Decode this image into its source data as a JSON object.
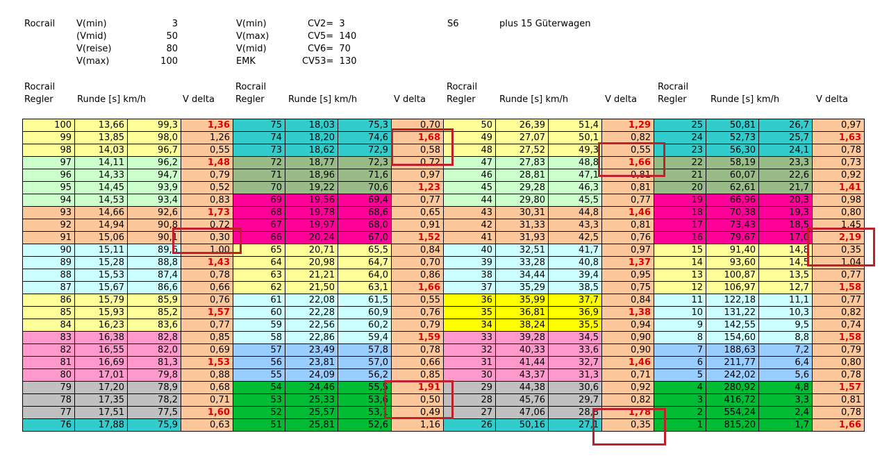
{
  "header": {
    "left_label": "Rocrail",
    "speeds": [
      {
        "label": "V(min)",
        "value": "3"
      },
      {
        "label": "(Vmid)",
        "value": "50"
      },
      {
        "label": "V(reise)",
        "value": "80"
      },
      {
        "label": "V(max)",
        "value": "100"
      }
    ],
    "cv_labels": [
      "V(min)",
      "V(max)",
      "V(mid)",
      "EMK"
    ],
    "cv_values": [
      "CV2=  3",
      "CV5=  140",
      "CV6=  70",
      "CV53=  130"
    ],
    "loco": "S6",
    "note": "plus 15 Güterwagen"
  },
  "column_header": {
    "rocrail": "Rocrail",
    "regler": "Regler",
    "runde": "Runde [s] km/h",
    "vdelta": "V delta"
  },
  "colors": {
    "yellow": "#ffff99",
    "lightgreen": "#ccffcc",
    "orange": "#fcc89b",
    "cyan": "#ccffff",
    "pink": "#ff99cc",
    "gray": "#c0c0c0",
    "teal": "#33cccc",
    "sage": "#99bb88",
    "magenta": "#ff0099",
    "blue": "#99ccff",
    "green": "#00bb33",
    "brightyellow": "#ffff00",
    "highlight": "#c0202a"
  },
  "blocks": [
    {
      "rows": [
        {
          "c": "yellow",
          "v": [
            "100",
            "13,66",
            "99,3",
            "1,36"
          ],
          "bold": true
        },
        {
          "c": "yellow",
          "v": [
            "99",
            "13,85",
            "98,0",
            "1,26"
          ],
          "bold": false
        },
        {
          "c": "yellow",
          "v": [
            "98",
            "14,03",
            "96,7",
            "0,55"
          ],
          "bold": false
        },
        {
          "c": "lightgreen",
          "v": [
            "97",
            "14,11",
            "96,2",
            "1,48"
          ],
          "bold": true
        },
        {
          "c": "lightgreen",
          "v": [
            "96",
            "14,33",
            "94,7",
            "0,79"
          ],
          "bold": false
        },
        {
          "c": "lightgreen",
          "v": [
            "95",
            "14,45",
            "93,9",
            "0,52"
          ],
          "bold": false
        },
        {
          "c": "lightgreen",
          "v": [
            "94",
            "14,53",
            "93,4",
            "0,83"
          ],
          "bold": false
        },
        {
          "c": "orange",
          "v": [
            "93",
            "14,66",
            "92,6",
            "1,73"
          ],
          "bold": true
        },
        {
          "c": "orange",
          "v": [
            "92",
            "14,94",
            "90,8",
            "0,72"
          ],
          "bold": false
        },
        {
          "c": "orange",
          "v": [
            "91",
            "15,06",
            "90,1",
            "0,30"
          ],
          "bold": false
        },
        {
          "c": "cyan",
          "v": [
            "90",
            "15,11",
            "89,6",
            "1,00"
          ],
          "bold": false
        },
        {
          "c": "cyan",
          "v": [
            "89",
            "15,28",
            "88,8",
            "1,43"
          ],
          "bold": true
        },
        {
          "c": "cyan",
          "v": [
            "88",
            "15,53",
            "87,4",
            "0,78"
          ],
          "bold": false
        },
        {
          "c": "cyan",
          "v": [
            "87",
            "15,67",
            "86,6",
            "0,66"
          ],
          "bold": false
        },
        {
          "c": "yellow",
          "v": [
            "86",
            "15,79",
            "85,9",
            "0,76"
          ],
          "bold": false
        },
        {
          "c": "yellow",
          "v": [
            "85",
            "15,93",
            "85,2",
            "1,57"
          ],
          "bold": true
        },
        {
          "c": "yellow",
          "v": [
            "84",
            "16,23",
            "83,6",
            "0,77"
          ],
          "bold": false
        },
        {
          "c": "pink",
          "v": [
            "83",
            "16,38",
            "82,8",
            "0,85"
          ],
          "bold": false
        },
        {
          "c": "pink",
          "v": [
            "82",
            "16,55",
            "82,0",
            "0,69"
          ],
          "bold": false
        },
        {
          "c": "pink",
          "v": [
            "81",
            "16,69",
            "81,3",
            "1,53"
          ],
          "bold": true
        },
        {
          "c": "pink",
          "v": [
            "80",
            "17,01",
            "79,8",
            "0,88"
          ],
          "bold": false
        },
        {
          "c": "gray",
          "v": [
            "79",
            "17,20",
            "78,9",
            "0,68"
          ],
          "bold": false
        },
        {
          "c": "gray",
          "v": [
            "78",
            "17,35",
            "78,2",
            "0,71"
          ],
          "bold": false
        },
        {
          "c": "gray",
          "v": [
            "77",
            "17,51",
            "77,5",
            "1,60"
          ],
          "bold": true
        },
        {
          "c": "teal",
          "v": [
            "76",
            "17,88",
            "75,9",
            "0,63"
          ],
          "bold": false
        }
      ]
    },
    {
      "rows": [
        {
          "c": "teal",
          "v": [
            "75",
            "18,03",
            "75,3",
            "0,70"
          ],
          "bold": false
        },
        {
          "c": "teal",
          "v": [
            "74",
            "18,20",
            "74,6",
            "1,68"
          ],
          "bold": true
        },
        {
          "c": "teal",
          "v": [
            "73",
            "18,62",
            "72,9",
            "0,58"
          ],
          "bold": false
        },
        {
          "c": "sage",
          "v": [
            "72",
            "18,77",
            "72,3",
            "0,72"
          ],
          "bold": false
        },
        {
          "c": "sage",
          "v": [
            "71",
            "18,96",
            "71,6",
            "0,97"
          ],
          "bold": false
        },
        {
          "c": "sage",
          "v": [
            "70",
            "19,22",
            "70,6",
            "1,23"
          ],
          "bold": true
        },
        {
          "c": "magenta",
          "v": [
            "69",
            "19,56",
            "69,4",
            "0,77"
          ],
          "bold": false
        },
        {
          "c": "magenta",
          "v": [
            "68",
            "19,78",
            "68,6",
            "0,65"
          ],
          "bold": false
        },
        {
          "c": "magenta",
          "v": [
            "67",
            "19,97",
            "68,0",
            "0,91"
          ],
          "bold": false
        },
        {
          "c": "magenta",
          "v": [
            "66",
            "20,24",
            "67,0",
            "1,52"
          ],
          "bold": true
        },
        {
          "c": "yellow",
          "v": [
            "65",
            "20,71",
            "65,5",
            "0,84"
          ],
          "bold": false
        },
        {
          "c": "yellow",
          "v": [
            "64",
            "20,98",
            "64,7",
            "0,70"
          ],
          "bold": false
        },
        {
          "c": "yellow",
          "v": [
            "63",
            "21,21",
            "64,0",
            "0,86"
          ],
          "bold": false
        },
        {
          "c": "yellow",
          "v": [
            "62",
            "21,50",
            "63,1",
            "1,66"
          ],
          "bold": true
        },
        {
          "c": "cyan",
          "v": [
            "61",
            "22,08",
            "61,5",
            "0,55"
          ],
          "bold": false
        },
        {
          "c": "cyan",
          "v": [
            "60",
            "22,28",
            "60,9",
            "0,76"
          ],
          "bold": false
        },
        {
          "c": "cyan",
          "v": [
            "59",
            "22,56",
            "60,2",
            "0,79"
          ],
          "bold": false
        },
        {
          "c": "cyan",
          "v": [
            "58",
            "22,86",
            "59,4",
            "1,59"
          ],
          "bold": true
        },
        {
          "c": "blue",
          "v": [
            "57",
            "23,49",
            "57,8",
            "0,78"
          ],
          "bold": false
        },
        {
          "c": "blue",
          "v": [
            "56",
            "23,81",
            "57,0",
            "0,66"
          ],
          "bold": false
        },
        {
          "c": "blue",
          "v": [
            "55",
            "24,09",
            "56,2",
            "0,85"
          ],
          "bold": false
        },
        {
          "c": "green",
          "v": [
            "54",
            "24,46",
            "55,5",
            "1,91"
          ],
          "bold": true
        },
        {
          "c": "green",
          "v": [
            "53",
            "25,33",
            "53,6",
            "0,50"
          ],
          "bold": false
        },
        {
          "c": "green",
          "v": [
            "52",
            "25,57",
            "53,1",
            "0,49"
          ],
          "bold": false
        },
        {
          "c": "green",
          "v": [
            "51",
            "25,81",
            "52,6",
            "1,16"
          ],
          "bold": false
        }
      ]
    },
    {
      "rows": [
        {
          "c": "yellow",
          "v": [
            "50",
            "26,39",
            "51,4",
            "1,29"
          ],
          "bold": true
        },
        {
          "c": "yellow",
          "v": [
            "49",
            "27,07",
            "50,1",
            "0,82"
          ],
          "bold": false
        },
        {
          "c": "yellow",
          "v": [
            "48",
            "27,52",
            "49,3",
            "0,55"
          ],
          "bold": false
        },
        {
          "c": "lightgreen",
          "v": [
            "47",
            "27,83",
            "48,8",
            "1,66"
          ],
          "bold": true
        },
        {
          "c": "lightgreen",
          "v": [
            "46",
            "28,81",
            "47,1",
            "0,81"
          ],
          "bold": false
        },
        {
          "c": "lightgreen",
          "v": [
            "45",
            "29,28",
            "46,3",
            "0,81"
          ],
          "bold": false
        },
        {
          "c": "lightgreen",
          "v": [
            "44",
            "29,80",
            "45,5",
            "0,77"
          ],
          "bold": false
        },
        {
          "c": "orange",
          "v": [
            "43",
            "30,31",
            "44,8",
            "1,46"
          ],
          "bold": true
        },
        {
          "c": "orange",
          "v": [
            "42",
            "31,33",
            "43,3",
            "0,81"
          ],
          "bold": false
        },
        {
          "c": "orange",
          "v": [
            "41",
            "31,93",
            "42,5",
            "0,76"
          ],
          "bold": false
        },
        {
          "c": "cyan",
          "v": [
            "40",
            "32,51",
            "41,7",
            "0,97"
          ],
          "bold": false
        },
        {
          "c": "cyan",
          "v": [
            "39",
            "33,28",
            "40,8",
            "1,37"
          ],
          "bold": true
        },
        {
          "c": "cyan",
          "v": [
            "38",
            "34,44",
            "39,4",
            "0,95"
          ],
          "bold": false
        },
        {
          "c": "cyan",
          "v": [
            "37",
            "35,29",
            "38,5",
            "0,75"
          ],
          "bold": false
        },
        {
          "c": "brightyellow",
          "v": [
            "36",
            "35,99",
            "37,7",
            "0,84"
          ],
          "bold": false
        },
        {
          "c": "brightyellow",
          "v": [
            "35",
            "36,81",
            "36,9",
            "1,38"
          ],
          "bold": true
        },
        {
          "c": "brightyellow",
          "v": [
            "34",
            "38,24",
            "35,5",
            "0,94"
          ],
          "bold": false
        },
        {
          "c": "pink",
          "v": [
            "33",
            "39,28",
            "34,5",
            "0,90"
          ],
          "bold": false
        },
        {
          "c": "pink",
          "v": [
            "32",
            "40,33",
            "33,6",
            "0,90"
          ],
          "bold": false
        },
        {
          "c": "pink",
          "v": [
            "31",
            "41,44",
            "32,7",
            "1,46"
          ],
          "bold": true
        },
        {
          "c": "pink",
          "v": [
            "30",
            "43,37",
            "31,3",
            "0,71"
          ],
          "bold": false
        },
        {
          "c": "gray",
          "v": [
            "29",
            "44,38",
            "30,6",
            "0,92"
          ],
          "bold": false
        },
        {
          "c": "gray",
          "v": [
            "28",
            "45,76",
            "29,7",
            "0,82"
          ],
          "bold": false
        },
        {
          "c": "gray",
          "v": [
            "27",
            "47,06",
            "28,8",
            "1,78"
          ],
          "bold": true
        },
        {
          "c": "teal",
          "v": [
            "26",
            "50,16",
            "27,1",
            "0,35"
          ],
          "bold": false
        }
      ]
    },
    {
      "rows": [
        {
          "c": "teal",
          "v": [
            "25",
            "50,81",
            "26,7",
            "0,97"
          ],
          "bold": false
        },
        {
          "c": "teal",
          "v": [
            "24",
            "52,73",
            "25,7",
            "1,63"
          ],
          "bold": true
        },
        {
          "c": "teal",
          "v": [
            "23",
            "56,30",
            "24,1",
            "0,78"
          ],
          "bold": false
        },
        {
          "c": "sage",
          "v": [
            "22",
            "58,19",
            "23,3",
            "0,73"
          ],
          "bold": false
        },
        {
          "c": "sage",
          "v": [
            "21",
            "60,07",
            "22,6",
            "0,92"
          ],
          "bold": false
        },
        {
          "c": "sage",
          "v": [
            "20",
            "62,61",
            "21,7",
            "1,41"
          ],
          "bold": true
        },
        {
          "c": "magenta",
          "v": [
            "19",
            "66,96",
            "20,3",
            "0,98"
          ],
          "bold": false
        },
        {
          "c": "magenta",
          "v": [
            "18",
            "70,38",
            "19,3",
            "0,80"
          ],
          "bold": false
        },
        {
          "c": "magenta",
          "v": [
            "17",
            "73,43",
            "18,5",
            "1,45"
          ],
          "bold": false
        },
        {
          "c": "magenta",
          "v": [
            "16",
            "79,67",
            "17,0",
            "2,19"
          ],
          "bold": true
        },
        {
          "c": "yellow",
          "v": [
            "15",
            "91,40",
            "14,8",
            "0,35"
          ],
          "bold": false
        },
        {
          "c": "yellow",
          "v": [
            "14",
            "93,60",
            "14,5",
            "1,04"
          ],
          "bold": false
        },
        {
          "c": "yellow",
          "v": [
            "13",
            "100,87",
            "13,5",
            "0,77"
          ],
          "bold": false
        },
        {
          "c": "yellow",
          "v": [
            "12",
            "106,97",
            "12,7",
            "1,58"
          ],
          "bold": true
        },
        {
          "c": "cyan",
          "v": [
            "11",
            "122,18",
            "11,1",
            "0,77"
          ],
          "bold": false
        },
        {
          "c": "cyan",
          "v": [
            "10",
            "131,22",
            "10,3",
            "0,82"
          ],
          "bold": false
        },
        {
          "c": "cyan",
          "v": [
            "9",
            "142,55",
            "9,5",
            "0,74"
          ],
          "bold": false
        },
        {
          "c": "cyan",
          "v": [
            "8",
            "154,60",
            "8,8",
            "1,58"
          ],
          "bold": true
        },
        {
          "c": "blue",
          "v": [
            "7",
            "188,63",
            "7,2",
            "0,79"
          ],
          "bold": false
        },
        {
          "c": "blue",
          "v": [
            "6",
            "211,77",
            "6,4",
            "0,80"
          ],
          "bold": false
        },
        {
          "c": "blue",
          "v": [
            "5",
            "242,02",
            "5,6",
            "0,78"
          ],
          "bold": false
        },
        {
          "c": "green",
          "v": [
            "4",
            "280,92",
            "4,8",
            "1,57"
          ],
          "bold": true
        },
        {
          "c": "green",
          "v": [
            "3",
            "416,72",
            "3,3",
            "0,81"
          ],
          "bold": false
        },
        {
          "c": "green",
          "v": [
            "2",
            "554,24",
            "2,4",
            "0,78"
          ],
          "bold": false
        },
        {
          "c": "green",
          "v": [
            "1",
            "815,20",
            "1,7",
            "1,66"
          ],
          "bold": true
        }
      ]
    }
  ]
}
